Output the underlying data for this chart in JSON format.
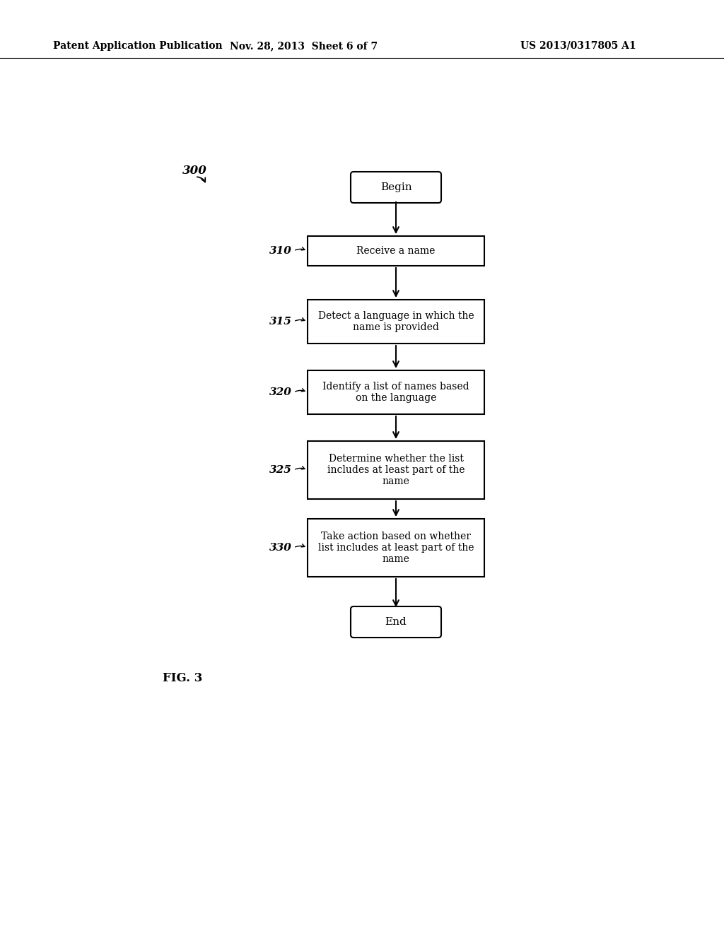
{
  "background_color": "#ffffff",
  "header_left": "Patent Application Publication",
  "header_center": "Nov. 28, 2013  Sheet 6 of 7",
  "header_right": "US 2013/0317805 A1",
  "figure_label": "FIG. 3",
  "diagram_label": "300",
  "nodes": [
    {
      "id": "begin",
      "text": "Begin",
      "shape": "rounded"
    },
    {
      "id": "310",
      "text": "Receive a name",
      "shape": "rect",
      "label": "310"
    },
    {
      "id": "315",
      "text": "Detect a language in which the\nname is provided",
      "shape": "rect",
      "label": "315"
    },
    {
      "id": "320",
      "text": "Identify a list of names based\non the language",
      "shape": "rect",
      "label": "320"
    },
    {
      "id": "325",
      "text": "Determine whether the list\nincludes at least part of the\nname",
      "shape": "rect",
      "label": "325"
    },
    {
      "id": "330",
      "text": "Take action based on whether\nlist includes at least part of the\nname",
      "shape": "rect",
      "label": "330"
    },
    {
      "id": "end",
      "text": "End",
      "shape": "rounded"
    }
  ],
  "font_size_box": 10,
  "font_size_header": 10,
  "font_size_label": 11
}
